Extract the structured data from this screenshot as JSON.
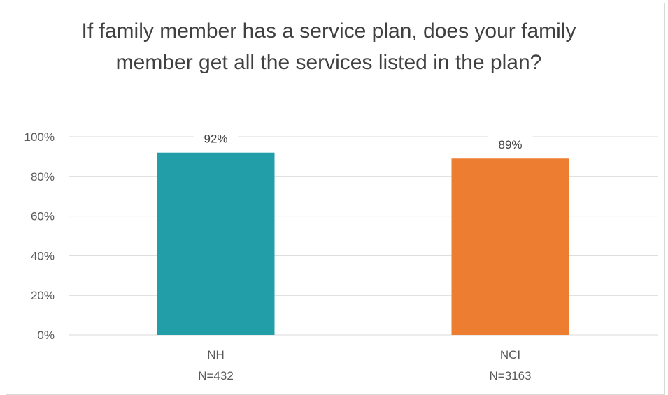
{
  "chart_data": {
    "type": "bar",
    "title": "If family member has a service plan, does your family member get all the services listed in the plan?",
    "categories": [
      "NH",
      "NCI"
    ],
    "category_sublabels": [
      "N=432",
      "N=3163"
    ],
    "values": [
      92,
      89
    ],
    "data_labels": [
      "92%",
      "89%"
    ],
    "bar_colors": [
      "#229ea8",
      "#ed7d31"
    ],
    "ylim": [
      0,
      100
    ],
    "y_ticks": [
      0,
      20,
      40,
      60,
      80,
      100
    ],
    "y_tick_labels": [
      "0%",
      "20%",
      "40%",
      "60%",
      "80%",
      "100%"
    ],
    "grid": true,
    "legend": "none",
    "xlabel": "",
    "ylabel": ""
  }
}
